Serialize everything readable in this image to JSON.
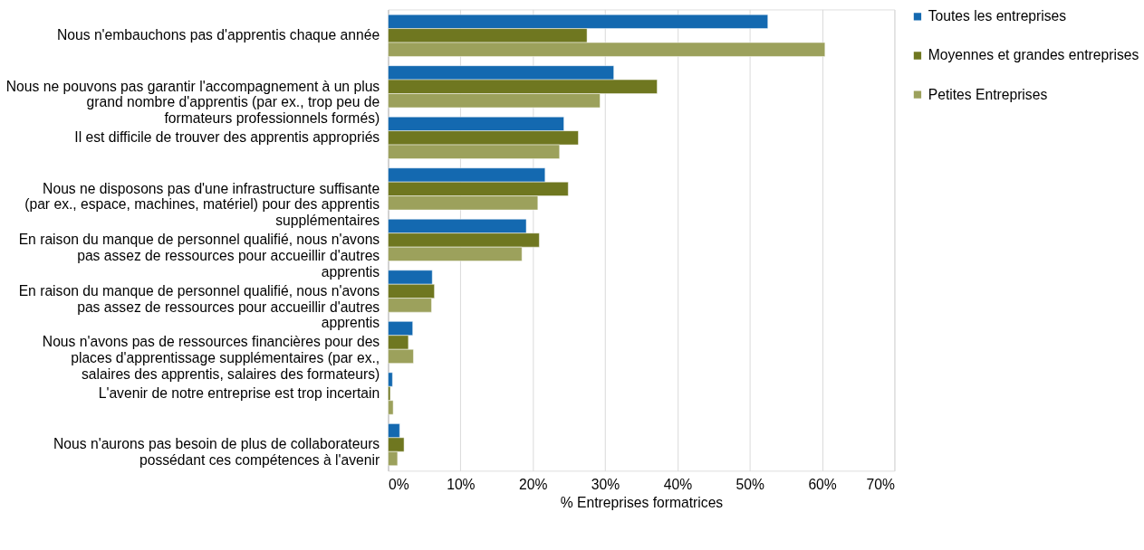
{
  "chart_data": {
    "type": "bar",
    "orientation": "horizontal",
    "xlabel": "% Entreprises formatrices",
    "categories": [
      "Nous n'embauchons pas d'apprentis chaque année",
      "Nous ne pouvons pas garantir l'accompagnement à un plus grand nombre d'apprentis (par ex., trop peu de formateurs professionnels formés)",
      "Il est difficile de trouver des apprentis appropriés",
      "Nous ne disposons pas d'une infrastructure suffisante (par ex., espace, machines, matériel) pour des apprentis supplémentaires",
      "En raison du manque de personnel qualifié, nous n'avons pas assez de ressources pour accueillir d'autres apprentis",
      "En raison du manque de personnel qualifié, nous n'avons pas assez de ressources pour accueillir d'autres apprentis",
      "Nous n'avons pas de ressources financières pour des places d'apprentissage supplémentaires (par ex., salaires des apprentis, salaires des formateurs)",
      "L'avenir de notre entreprise est trop incertain",
      "Nous n'aurons pas besoin de plus de collaborateurs possédant ces compétences à l'avenir"
    ],
    "series": [
      {
        "name": "Toutes les entreprises",
        "color": "#1469b0",
        "values": [
          52.5,
          31.2,
          24.3,
          21.7,
          19.1,
          6.1,
          3.4,
          0.6,
          1.6
        ]
      },
      {
        "name": "Moyennes et grandes entreprises",
        "color": "#6f7720",
        "values": [
          27.5,
          37.2,
          26.3,
          24.9,
          20.9,
          6.4,
          2.8,
          0.3,
          2.2
        ]
      },
      {
        "name": "Petites Entreprises",
        "color": "#9ca15c",
        "values": [
          60.4,
          29.3,
          23.7,
          20.7,
          18.5,
          6.0,
          3.5,
          0.7,
          1.3
        ]
      }
    ],
    "xlim": [
      0,
      70
    ],
    "xticks": [
      {
        "value": 0,
        "label": "0%"
      },
      {
        "value": 10,
        "label": "10%"
      },
      {
        "value": 20,
        "label": "20%"
      },
      {
        "value": 30,
        "label": "30%"
      },
      {
        "value": 40,
        "label": "40%"
      },
      {
        "value": 50,
        "label": "50%"
      },
      {
        "value": 60,
        "label": "60%"
      },
      {
        "value": 70,
        "label": "70%"
      }
    ],
    "grid": "x",
    "legend": "right"
  }
}
